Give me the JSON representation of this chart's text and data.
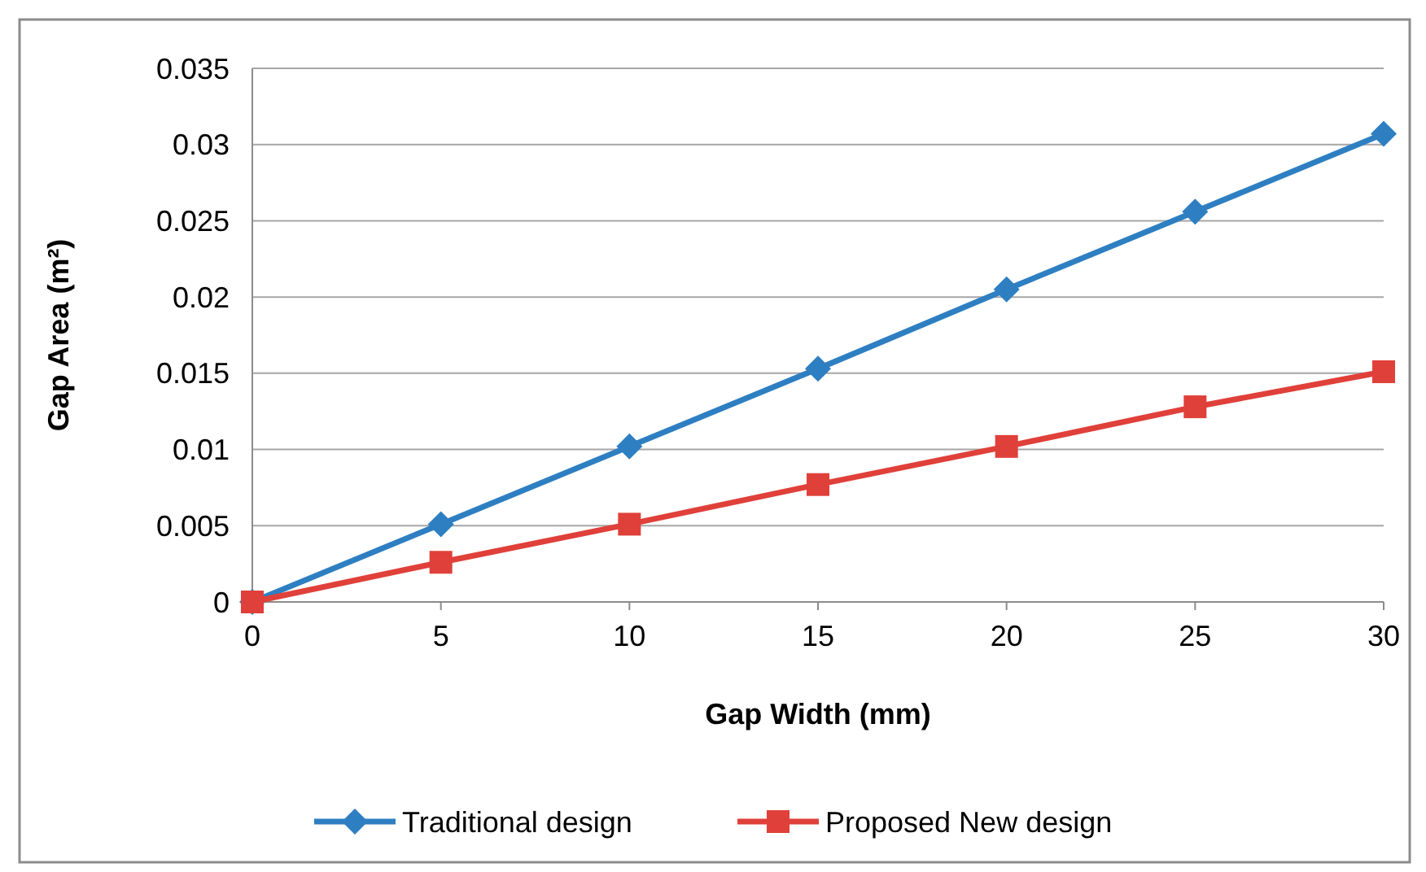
{
  "chart_data": {
    "type": "line",
    "xlabel": "Gap Width (mm)",
    "ylabel": "Gap Area (m²)",
    "x": [
      0,
      5,
      10,
      15,
      20,
      25,
      30
    ],
    "xlim": [
      0,
      30
    ],
    "xticks": [
      0,
      5,
      10,
      15,
      20,
      25,
      30
    ],
    "ylim": [
      0,
      0.035
    ],
    "yticks": [
      0,
      0.005,
      0.01,
      0.015,
      0.02,
      0.025,
      0.03,
      0.035
    ],
    "grid": "y",
    "legend": "bottom",
    "line_style": "solid",
    "series": [
      {
        "name": "Traditional design",
        "color": "#2e7fc2",
        "marker": "diamond",
        "values": [
          0,
          0.0051,
          0.0102,
          0.0153,
          0.0205,
          0.0256,
          0.0307
        ]
      },
      {
        "name": "Proposed New design",
        "color": "#e0403a",
        "marker": "square",
        "values": [
          0,
          0.0026,
          0.0051,
          0.0077,
          0.0102,
          0.0128,
          0.0151
        ]
      }
    ]
  }
}
